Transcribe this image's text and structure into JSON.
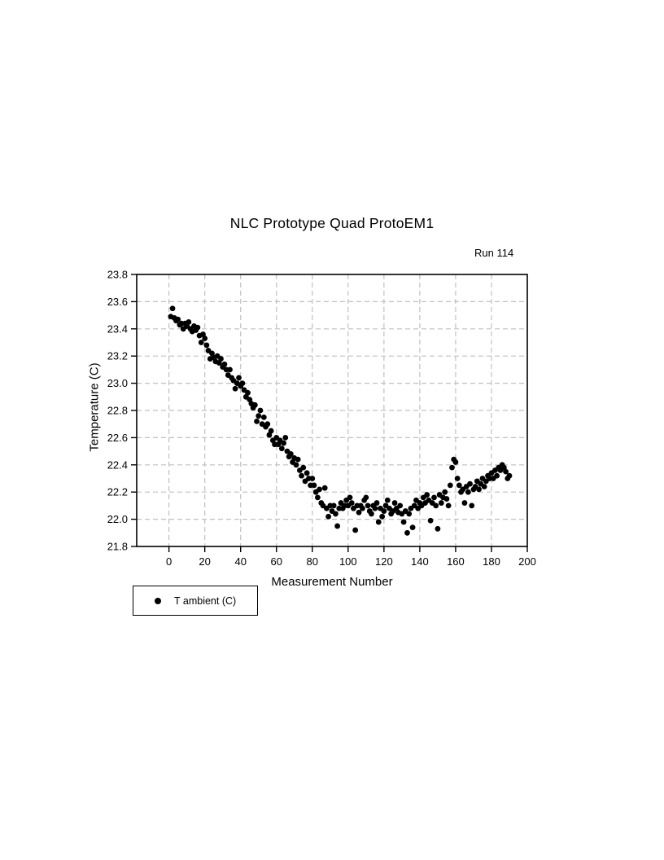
{
  "colors": {
    "background": "#ffffff",
    "text": "#000000",
    "marker": "#000000",
    "gridline": "#c0c0c0",
    "plot_border": "#000000"
  },
  "chart_data": {
    "type": "scatter",
    "title": "NLC Prototype Quad ProtoEM1",
    "annotation": "Run 114",
    "xlabel": "Measurement Number",
    "ylabel": "Temperature (C)",
    "xlim": [
      -18,
      200
    ],
    "ylim": [
      21.8,
      23.8
    ],
    "x_ticks": [
      0,
      20,
      40,
      60,
      80,
      100,
      120,
      140,
      160,
      180,
      200
    ],
    "y_ticks": [
      21.8,
      22.0,
      22.2,
      22.4,
      22.6,
      22.8,
      23.0,
      23.2,
      23.4,
      23.6,
      23.8
    ],
    "grid": true,
    "grid_style": "dashed",
    "legend_position": "bottom-left-outside",
    "series": [
      {
        "name": "T ambient (C)",
        "marker": "filled-circle",
        "color": "#000000",
        "points": [
          [
            1,
            23.49
          ],
          [
            2,
            23.55
          ],
          [
            3,
            23.48
          ],
          [
            4,
            23.46
          ],
          [
            5,
            23.47
          ],
          [
            6,
            23.43
          ],
          [
            7,
            23.44
          ],
          [
            8,
            23.4
          ],
          [
            9,
            23.44
          ],
          [
            10,
            23.42
          ],
          [
            11,
            23.45
          ],
          [
            12,
            23.4
          ],
          [
            13,
            23.38
          ],
          [
            14,
            23.42
          ],
          [
            15,
            23.39
          ],
          [
            16,
            23.41
          ],
          [
            17,
            23.35
          ],
          [
            18,
            23.3
          ],
          [
            19,
            23.36
          ],
          [
            20,
            23.33
          ],
          [
            21,
            23.28
          ],
          [
            22,
            23.24
          ],
          [
            23,
            23.18
          ],
          [
            24,
            23.22
          ],
          [
            25,
            23.19
          ],
          [
            26,
            23.16
          ],
          [
            27,
            23.2
          ],
          [
            28,
            23.15
          ],
          [
            29,
            23.18
          ],
          [
            30,
            23.12
          ],
          [
            31,
            23.14
          ],
          [
            32,
            23.1
          ],
          [
            33,
            23.06
          ],
          [
            34,
            23.1
          ],
          [
            35,
            23.04
          ],
          [
            36,
            23.02
          ],
          [
            37,
            22.96
          ],
          [
            38,
            23.0
          ],
          [
            39,
            23.04
          ],
          [
            40,
            22.98
          ],
          [
            41,
            23.0
          ],
          [
            42,
            22.95
          ],
          [
            43,
            22.9
          ],
          [
            44,
            22.93
          ],
          [
            45,
            22.88
          ],
          [
            46,
            22.85
          ],
          [
            47,
            22.82
          ],
          [
            48,
            22.84
          ],
          [
            49,
            22.72
          ],
          [
            50,
            22.76
          ],
          [
            51,
            22.8
          ],
          [
            52,
            22.7
          ],
          [
            53,
            22.75
          ],
          [
            54,
            22.68
          ],
          [
            55,
            22.7
          ],
          [
            56,
            22.62
          ],
          [
            57,
            22.65
          ],
          [
            58,
            22.58
          ],
          [
            59,
            22.55
          ],
          [
            60,
            22.6
          ],
          [
            61,
            22.55
          ],
          [
            62,
            22.58
          ],
          [
            63,
            22.52
          ],
          [
            64,
            22.56
          ],
          [
            65,
            22.6
          ],
          [
            66,
            22.5
          ],
          [
            67,
            22.46
          ],
          [
            68,
            22.48
          ],
          [
            69,
            22.42
          ],
          [
            70,
            22.45
          ],
          [
            71,
            22.4
          ],
          [
            72,
            22.44
          ],
          [
            73,
            22.36
          ],
          [
            74,
            22.32
          ],
          [
            75,
            22.38
          ],
          [
            76,
            22.28
          ],
          [
            77,
            22.34
          ],
          [
            78,
            22.3
          ],
          [
            79,
            22.25
          ],
          [
            80,
            22.3
          ],
          [
            81,
            22.25
          ],
          [
            82,
            22.2
          ],
          [
            83,
            22.16
          ],
          [
            84,
            22.22
          ],
          [
            85,
            22.12
          ],
          [
            86,
            22.1
          ],
          [
            87,
            22.23
          ],
          [
            88,
            22.08
          ],
          [
            89,
            22.02
          ],
          [
            90,
            22.1
          ],
          [
            91,
            22.06
          ],
          [
            92,
            22.1
          ],
          [
            93,
            22.04
          ],
          [
            94,
            21.95
          ],
          [
            95,
            22.08
          ],
          [
            96,
            22.12
          ],
          [
            97,
            22.08
          ],
          [
            98,
            22.1
          ],
          [
            99,
            22.14
          ],
          [
            100,
            22.1
          ],
          [
            101,
            22.16
          ],
          [
            102,
            22.12
          ],
          [
            103,
            22.08
          ],
          [
            104,
            21.92
          ],
          [
            105,
            22.1
          ],
          [
            106,
            22.05
          ],
          [
            107,
            22.1
          ],
          [
            108,
            22.08
          ],
          [
            109,
            22.14
          ],
          [
            110,
            22.16
          ],
          [
            111,
            22.1
          ],
          [
            112,
            22.06
          ],
          [
            113,
            22.04
          ],
          [
            114,
            22.1
          ],
          [
            115,
            22.08
          ],
          [
            116,
            22.12
          ],
          [
            117,
            21.98
          ],
          [
            118,
            22.08
          ],
          [
            119,
            22.02
          ],
          [
            120,
            22.06
          ],
          [
            121,
            22.1
          ],
          [
            122,
            22.14
          ],
          [
            123,
            22.08
          ],
          [
            124,
            22.04
          ],
          [
            125,
            22.06
          ],
          [
            126,
            22.12
          ],
          [
            127,
            22.08
          ],
          [
            128,
            22.05
          ],
          [
            129,
            22.1
          ],
          [
            130,
            22.04
          ],
          [
            131,
            21.98
          ],
          [
            132,
            22.06
          ],
          [
            133,
            21.9
          ],
          [
            134,
            22.04
          ],
          [
            135,
            22.08
          ],
          [
            136,
            21.94
          ],
          [
            137,
            22.1
          ],
          [
            138,
            22.14
          ],
          [
            139,
            22.08
          ],
          [
            140,
            22.12
          ],
          [
            141,
            22.1
          ],
          [
            142,
            22.16
          ],
          [
            143,
            22.12
          ],
          [
            144,
            22.18
          ],
          [
            145,
            22.14
          ],
          [
            146,
            21.99
          ],
          [
            147,
            22.12
          ],
          [
            148,
            22.16
          ],
          [
            149,
            22.1
          ],
          [
            150,
            21.93
          ],
          [
            151,
            22.18
          ],
          [
            152,
            22.12
          ],
          [
            153,
            22.16
          ],
          [
            154,
            22.2
          ],
          [
            155,
            22.15
          ],
          [
            156,
            22.1
          ],
          [
            157,
            22.25
          ],
          [
            158,
            22.38
          ],
          [
            159,
            22.44
          ],
          [
            160,
            22.42
          ],
          [
            161,
            22.3
          ],
          [
            162,
            22.25
          ],
          [
            163,
            22.2
          ],
          [
            164,
            22.22
          ],
          [
            165,
            22.12
          ],
          [
            166,
            22.24
          ],
          [
            167,
            22.2
          ],
          [
            168,
            22.26
          ],
          [
            169,
            22.1
          ],
          [
            170,
            22.22
          ],
          [
            171,
            22.24
          ],
          [
            172,
            22.28
          ],
          [
            173,
            22.22
          ],
          [
            174,
            22.26
          ],
          [
            175,
            22.3
          ],
          [
            176,
            22.24
          ],
          [
            177,
            22.28
          ],
          [
            178,
            22.32
          ],
          [
            179,
            22.3
          ],
          [
            180,
            22.34
          ],
          [
            181,
            22.3
          ],
          [
            182,
            22.36
          ],
          [
            183,
            22.32
          ],
          [
            184,
            22.38
          ],
          [
            185,
            22.36
          ],
          [
            186,
            22.4
          ],
          [
            187,
            22.38
          ],
          [
            188,
            22.35
          ],
          [
            189,
            22.3
          ],
          [
            190,
            22.32
          ]
        ]
      }
    ]
  }
}
